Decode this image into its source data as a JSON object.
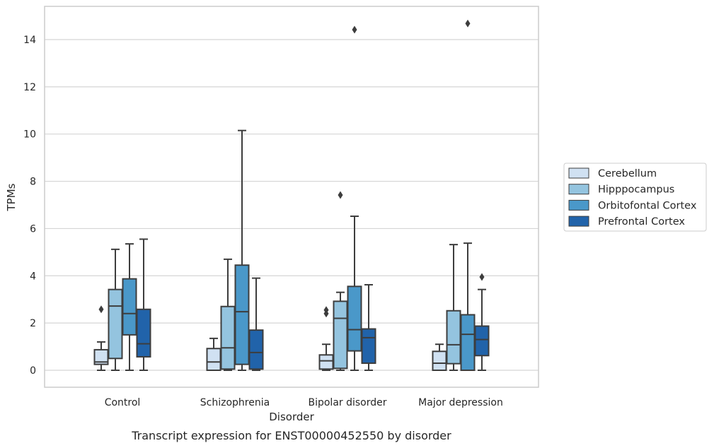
{
  "caption": "Transcript expression for ENST00000452550 by disorder",
  "chart_data": {
    "type": "box",
    "xlabel": "Disorder",
    "ylabel": "TPMs",
    "ylim": [
      -0.7,
      15.4
    ],
    "yticks": [
      0,
      2,
      4,
      6,
      8,
      10,
      12,
      14
    ],
    "grid": "horizontal",
    "legend_position": "right",
    "categories": [
      "Control",
      "Schizophrenia",
      "Bipolar disorder",
      "Major depression"
    ],
    "series": [
      {
        "name": "Cerebellum",
        "color": "#d0e1f2",
        "boxes": [
          {
            "whisker_low": 0.0,
            "q1": 0.25,
            "median": 0.35,
            "q3": 0.87,
            "whisker_high": 1.2,
            "outliers": [
              2.58
            ]
          },
          {
            "whisker_low": 0.0,
            "q1": 0.0,
            "median": 0.35,
            "q3": 0.92,
            "whisker_high": 1.35,
            "outliers": []
          },
          {
            "whisker_low": 0.0,
            "q1": 0.05,
            "median": 0.4,
            "q3": 0.65,
            "whisker_high": 1.1,
            "outliers": [
              2.4,
              2.55
            ]
          },
          {
            "whisker_low": 0.0,
            "q1": 0.0,
            "median": 0.3,
            "q3": 0.8,
            "whisker_high": 1.1,
            "outliers": []
          }
        ]
      },
      {
        "name": "Hipppocampus",
        "color": "#94c4df",
        "boxes": [
          {
            "whisker_low": 0.0,
            "q1": 0.5,
            "median": 2.72,
            "q3": 3.42,
            "whisker_high": 5.12,
            "outliers": []
          },
          {
            "whisker_low": 0.0,
            "q1": 0.05,
            "median": 0.95,
            "q3": 2.7,
            "whisker_high": 4.7,
            "outliers": []
          },
          {
            "whisker_low": 0.0,
            "q1": 0.08,
            "median": 2.2,
            "q3": 2.92,
            "whisker_high": 3.3,
            "outliers": [
              7.42
            ]
          },
          {
            "whisker_low": 0.0,
            "q1": 0.28,
            "median": 1.08,
            "q3": 2.52,
            "whisker_high": 5.32,
            "outliers": []
          }
        ]
      },
      {
        "name": "Orbitofontal Cortex",
        "color": "#4a98c9",
        "boxes": [
          {
            "whisker_low": 0.0,
            "q1": 1.5,
            "median": 2.4,
            "q3": 3.87,
            "whisker_high": 5.35,
            "outliers": []
          },
          {
            "whisker_low": 0.0,
            "q1": 0.25,
            "median": 2.48,
            "q3": 4.45,
            "whisker_high": 10.15,
            "outliers": []
          },
          {
            "whisker_low": 0.0,
            "q1": 0.82,
            "median": 1.72,
            "q3": 3.55,
            "whisker_high": 6.52,
            "outliers": [
              14.42
            ]
          },
          {
            "whisker_low": 0.0,
            "q1": 0.0,
            "median": 1.52,
            "q3": 2.35,
            "whisker_high": 5.38,
            "outliers": [
              14.68
            ]
          }
        ]
      },
      {
        "name": "Prefrontal Cortex",
        "color": "#2163aa",
        "boxes": [
          {
            "whisker_low": 0.0,
            "q1": 0.57,
            "median": 1.12,
            "q3": 2.58,
            "whisker_high": 5.55,
            "outliers": []
          },
          {
            "whisker_low": 0.0,
            "q1": 0.05,
            "median": 0.75,
            "q3": 1.7,
            "whisker_high": 3.9,
            "outliers": []
          },
          {
            "whisker_low": 0.0,
            "q1": 0.3,
            "median": 1.38,
            "q3": 1.75,
            "whisker_high": 3.62,
            "outliers": []
          },
          {
            "whisker_low": 0.0,
            "q1": 0.62,
            "median": 1.3,
            "q3": 1.87,
            "whisker_high": 3.42,
            "outliers": [
              3.95
            ]
          }
        ]
      }
    ]
  }
}
